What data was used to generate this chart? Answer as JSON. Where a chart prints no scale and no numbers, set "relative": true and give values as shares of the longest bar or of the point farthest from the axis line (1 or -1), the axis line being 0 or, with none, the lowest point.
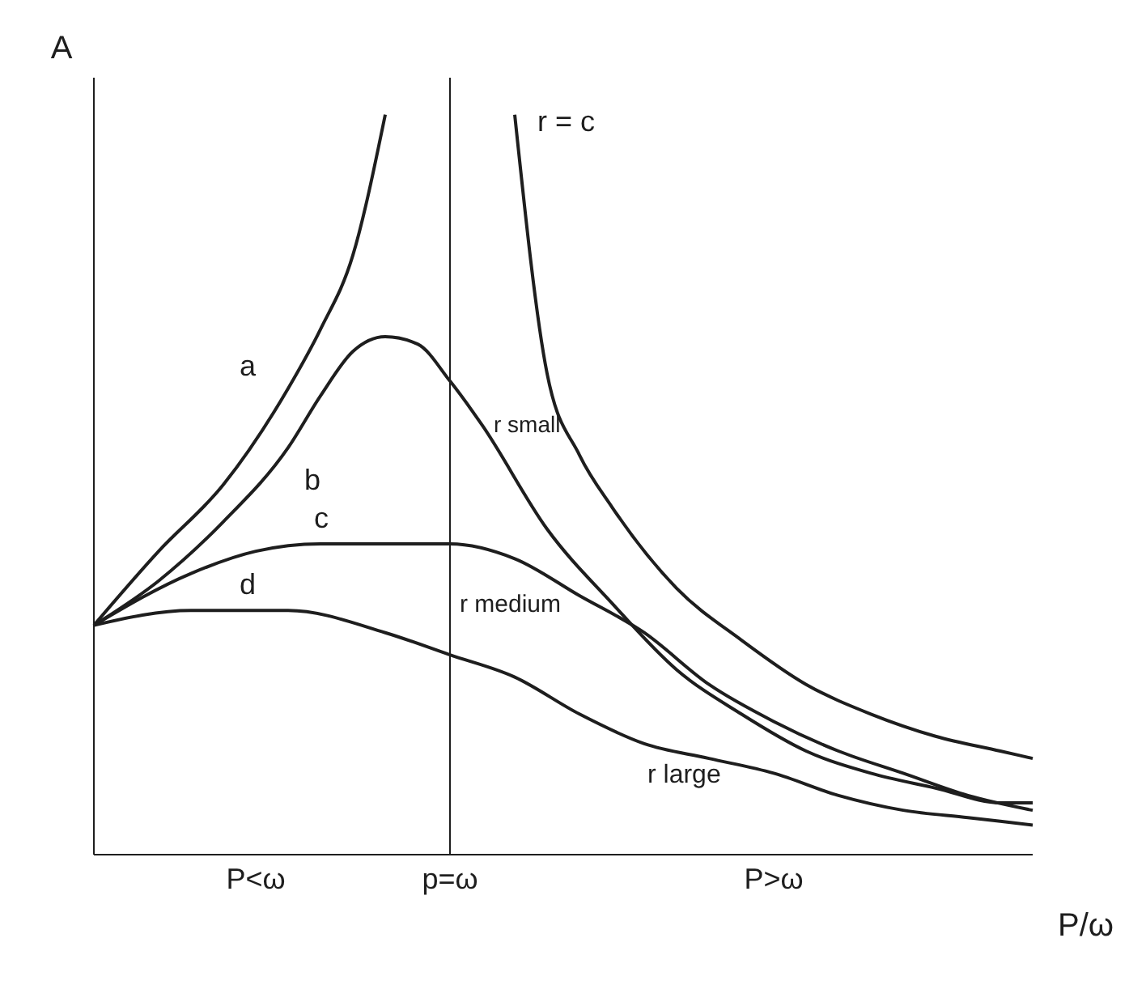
{
  "chart_data": {
    "type": "line",
    "relative": true,
    "xlabel": "P/ω",
    "ylabel": "A",
    "categories": [
      null,
      null,
      null,
      null,
      null,
      "P<ω",
      null,
      null,
      null,
      null,
      null,
      "p=ω",
      null,
      null,
      null,
      null,
      null,
      null,
      null,
      null,
      null,
      "P>ω",
      null,
      null,
      null,
      null,
      null,
      null,
      null,
      null
    ],
    "series": [
      {
        "color": "#1e1e1e",
        "values": [
          0.31,
          null,
          0.41,
          null,
          0.5,
          null,
          0.63,
          0.71,
          0.81,
          1.0,
          null,
          null,
          null,
          null,
          null,
          null,
          null,
          null,
          null,
          null,
          null,
          null,
          null,
          null,
          null,
          null,
          null,
          null,
          null,
          null
        ]
      },
      {
        "name": "r small",
        "color": "#1e1e1e",
        "values": [
          0.31,
          null,
          0.37,
          null,
          0.45,
          null,
          0.55,
          0.62,
          0.68,
          0.7,
          0.69,
          0.64,
          0.58,
          null,
          0.44,
          null,
          0.34,
          null,
          0.25,
          null,
          0.19,
          null,
          0.14,
          null,
          0.11,
          null,
          0.09,
          null,
          0.07,
          0.07
        ]
      },
      {
        "name": "r medium",
        "color": "#1e1e1e",
        "values": [
          0.31,
          null,
          null,
          0.38,
          null,
          0.41,
          null,
          0.42,
          null,
          0.42,
          null,
          0.42,
          null,
          0.4,
          null,
          0.35,
          null,
          0.3,
          null,
          0.23,
          null,
          0.18,
          null,
          0.14,
          null,
          0.11,
          null,
          0.08,
          null,
          0.06
        ]
      },
      {
        "name": "r large",
        "color": "#1e1e1e",
        "values": [
          0.31,
          null,
          null,
          0.33,
          null,
          null,
          0.33,
          null,
          null,
          0.3,
          null,
          0.27,
          null,
          0.24,
          null,
          0.19,
          null,
          0.15,
          null,
          0.13,
          null,
          0.11,
          null,
          0.08,
          null,
          0.06,
          null,
          0.05,
          null,
          0.04
        ]
      },
      {
        "name": "r = c",
        "color": "#1e1e1e",
        "values": [
          null,
          null,
          null,
          null,
          null,
          null,
          null,
          null,
          null,
          null,
          null,
          null,
          null,
          1.0,
          0.65,
          0.54,
          0.47,
          null,
          0.36,
          null,
          0.29,
          null,
          0.23,
          null,
          0.19,
          null,
          0.16,
          null,
          0.14,
          0.13
        ]
      }
    ],
    "annotations": [
      "a",
      "b",
      "c",
      "d"
    ],
    "ref_lines": [
      {
        "axis": "x",
        "value": "p=ω",
        "color": "#1e1e1e"
      }
    ],
    "grid": false,
    "legend": false,
    "marker": "none",
    "line_style": "solid"
  }
}
